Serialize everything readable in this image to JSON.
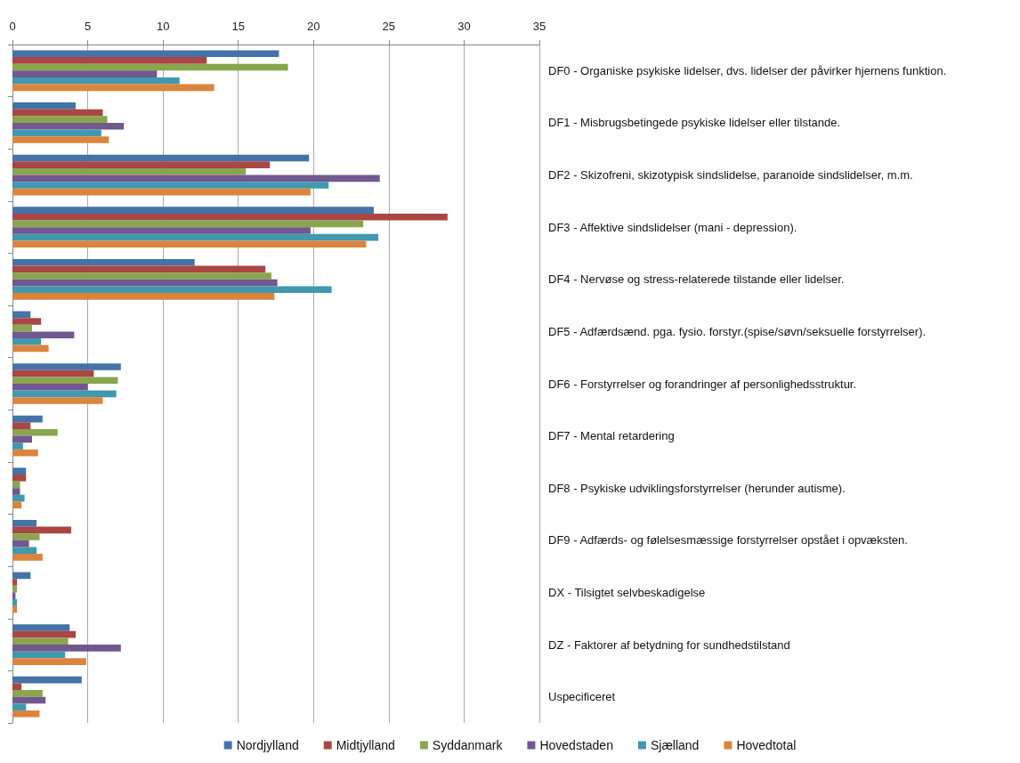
{
  "chart_data": {
    "type": "bar",
    "orientation": "horizontal",
    "categories": [
      "DF0 - Organiske psykiske lidelser, dvs. lidelser der påvirker hjernens funktion.",
      "DF1 - Misbrugsbetingede psykiske lidelser eller tilstande.",
      "DF2 - Skizofreni, skizotypisk sindslidelse, paranoide sindslidelser, m.m.",
      "DF3 - Affektive sindslidelser (mani - depression).",
      "DF4 - Nervøse og stress-relaterede tilstande eller lidelser.",
      "DF5 - Adfærdsænd. pga. fysio. forstyr.(spise/søvn/seksuelle forstyrrelser).",
      "DF6 - Forstyrrelser og forandringer af personlighedsstruktur.",
      "DF7 - Mental retardering",
      "DF8 - Psykiske udviklingsforstyrrelser (herunder autisme).",
      "DF9 - Adfærds- og følelsesmæssige forstyrrelser opstået i opvæksten.",
      "DX - Tilsigtet selvbeskadigelse",
      "DZ - Faktorer af betydning for sundhedstilstand",
      "Uspecificeret"
    ],
    "series": [
      {
        "name": "Nordjylland",
        "color": "#4572a7",
        "values": [
          17.7,
          4.2,
          19.7,
          24.0,
          12.1,
          1.2,
          7.2,
          2.0,
          0.9,
          1.6,
          1.2,
          3.8,
          4.6
        ]
      },
      {
        "name": "Midtjylland",
        "color": "#aa4643",
        "values": [
          12.9,
          6.0,
          17.1,
          28.9,
          16.8,
          1.9,
          5.4,
          1.2,
          0.9,
          3.9,
          0.3,
          4.2,
          0.6
        ]
      },
      {
        "name": "Syddanmark",
        "color": "#89a54e",
        "values": [
          18.3,
          6.3,
          15.5,
          23.3,
          17.2,
          1.3,
          7.0,
          3.0,
          0.5,
          1.8,
          0.3,
          3.7,
          2.0
        ]
      },
      {
        "name": "Hovedstaden",
        "color": "#71588f",
        "values": [
          9.6,
          7.4,
          24.4,
          19.8,
          17.6,
          4.1,
          5.0,
          1.3,
          0.5,
          1.1,
          0.2,
          7.2,
          2.2
        ]
      },
      {
        "name": "Sjælland",
        "color": "#4198af",
        "values": [
          11.1,
          5.9,
          21.0,
          24.3,
          21.2,
          1.9,
          6.9,
          0.7,
          0.8,
          1.6,
          0.3,
          3.5,
          0.9
        ]
      },
      {
        "name": "Hovedtotal",
        "color": "#db843d",
        "values": [
          13.4,
          6.4,
          19.8,
          23.5,
          17.4,
          2.4,
          6.0,
          1.7,
          0.6,
          2.0,
          0.3,
          4.9,
          1.8
        ]
      }
    ],
    "xlim": [
      0,
      35
    ],
    "xticks": [
      0,
      5,
      10,
      15,
      20,
      25,
      30,
      35
    ],
    "grid": "x",
    "legend": "bottom"
  }
}
